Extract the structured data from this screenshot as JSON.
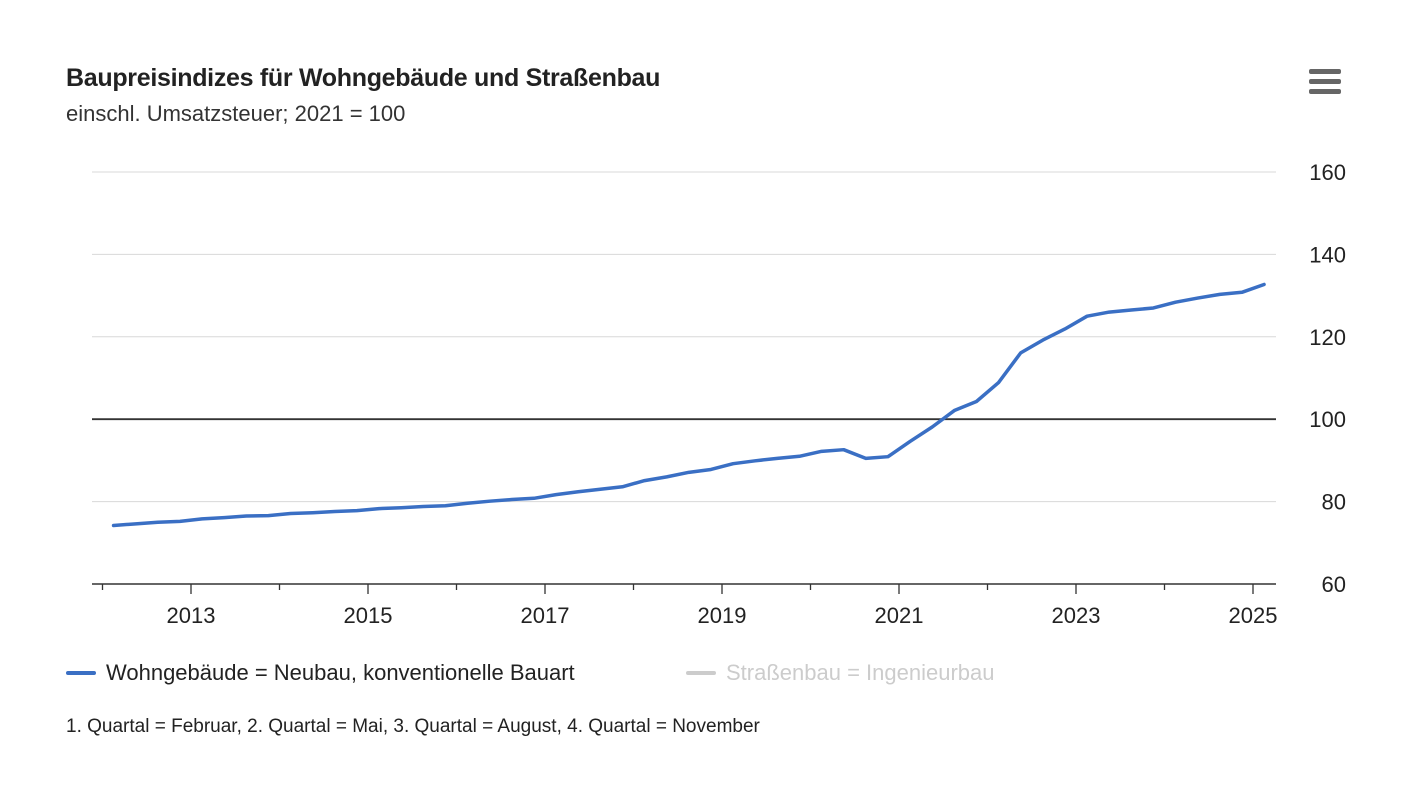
{
  "title": "Baupreisindizes für Wohngebäude und Straßenbau",
  "subtitle": "einschl. Umsatzsteuer; 2021 = 100",
  "menu_icon": "hamburger-menu-icon",
  "footnote": "1. Quartal = Februar, 2. Quartal = Mai, 3. Quartal = August, 4. Quartal = November",
  "colors": {
    "series1": "#3a6fc4",
    "series2_disabled": "#cccccc",
    "grid": "#d8d8d8",
    "baseline": "#333333"
  },
  "chart_data": {
    "type": "line",
    "title": "Baupreisindizes für Wohngebäude und Straßenbau",
    "subtitle": "einschl. Umsatzsteuer; 2021 = 100",
    "xlabel": "",
    "ylabel": "",
    "ylim": [
      60,
      160
    ],
    "yticks": [
      "60",
      "80",
      "100",
      "120",
      "140",
      "160"
    ],
    "xlim": [
      2012,
      2025.3
    ],
    "xticks": [
      "2013",
      "2015",
      "2017",
      "2019",
      "2021",
      "2023",
      "2025"
    ],
    "grid": true,
    "reference_line": 100,
    "legend_placement": "bottom",
    "series": [
      {
        "name": "Wohngebäude = Neubau, konventionelle Bauart",
        "visible": true,
        "start": "2012 Q1",
        "frequency": "quarterly",
        "values": [
          74.2,
          74.6,
          75.0,
          75.2,
          75.8,
          76.1,
          76.5,
          76.6,
          77.1,
          77.3,
          77.6,
          77.8,
          78.3,
          78.5,
          78.8,
          79.0,
          79.6,
          80.1,
          80.5,
          80.8,
          81.7,
          82.4,
          83.0,
          83.6,
          85.1,
          86.0,
          87.1,
          87.8,
          89.2,
          89.9,
          90.5,
          91.0,
          92.2,
          92.6,
          90.5,
          90.9,
          94.6,
          98.1,
          102.1,
          104.3,
          108.9,
          116.1,
          119.2,
          121.9,
          125.0,
          126.0,
          126.5,
          127.0,
          128.4,
          129.4,
          130.3,
          130.8,
          132.7
        ]
      },
      {
        "name": "Straßenbau = Ingenieurbau",
        "visible": false,
        "values": []
      }
    ]
  }
}
